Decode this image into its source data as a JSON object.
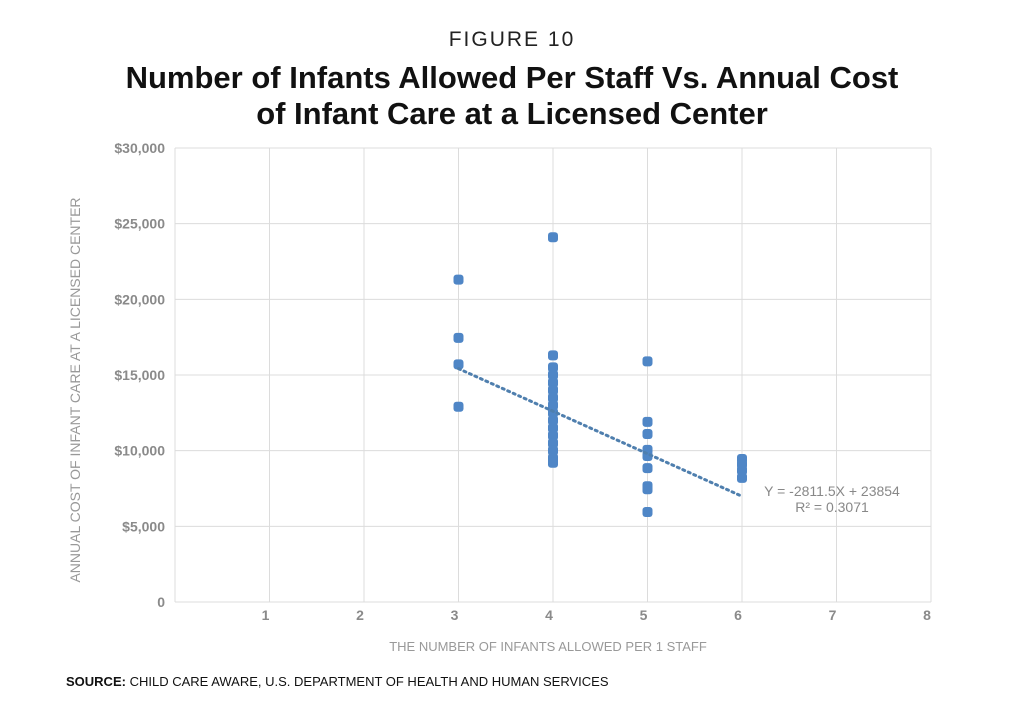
{
  "figure_label": "FIGURE 10",
  "title_line1": "Number of Infants Allowed Per Staff Vs. Annual Cost",
  "title_line2": "of Infant Care at a Licensed Center",
  "source_label": "SOURCE:",
  "source_text": "CHILD CARE AWARE, U.S. DEPARTMENT OF HEALTH AND HUMAN SERVICES",
  "chart_data": {
    "type": "scatter",
    "xlabel": "THE NUMBER OF INFANTS ALLOWED PER 1 STAFF",
    "ylabel": "ANNUAL COST OF INFANT CARE AT A LICENSED CENTER",
    "xlim": [
      0,
      8
    ],
    "ylim": [
      0,
      30000
    ],
    "xticks": [
      "1",
      "2",
      "3",
      "4",
      "5",
      "6",
      "7",
      "8"
    ],
    "yticks": [
      "0",
      "$5,000",
      "$10,000",
      "$15,000",
      "$20,000",
      "$25,000",
      "$30,000"
    ],
    "grid": true,
    "point_color": "#4f86c6",
    "points": [
      [
        3,
        21300
      ],
      [
        3,
        17450
      ],
      [
        3,
        15700
      ],
      [
        3,
        12900
      ],
      [
        4,
        24100
      ],
      [
        4,
        16300
      ],
      [
        4,
        15500
      ],
      [
        4,
        15000
      ],
      [
        4,
        14500
      ],
      [
        4,
        14000
      ],
      [
        4,
        13500
      ],
      [
        4,
        13000
      ],
      [
        4,
        12500
      ],
      [
        4,
        12000
      ],
      [
        4,
        11500
      ],
      [
        4,
        11000
      ],
      [
        4,
        10500
      ],
      [
        4,
        10000
      ],
      [
        4,
        9500
      ],
      [
        4,
        9200
      ],
      [
        5,
        15900
      ],
      [
        5,
        11900
      ],
      [
        5,
        11100
      ],
      [
        5,
        10050
      ],
      [
        5,
        9650
      ],
      [
        5,
        8850
      ],
      [
        5,
        7650
      ],
      [
        5,
        7450
      ],
      [
        5,
        5950
      ],
      [
        6,
        9450
      ],
      [
        6,
        9100
      ],
      [
        6,
        8700
      ],
      [
        6,
        8200
      ]
    ],
    "trendline": {
      "slope": -2811.5,
      "intercept": 23854,
      "x_range": [
        3,
        6
      ],
      "equation": "Y = -2811.5X + 23854",
      "r2": "R² = 0.3071",
      "color": "#4f7fae"
    }
  }
}
